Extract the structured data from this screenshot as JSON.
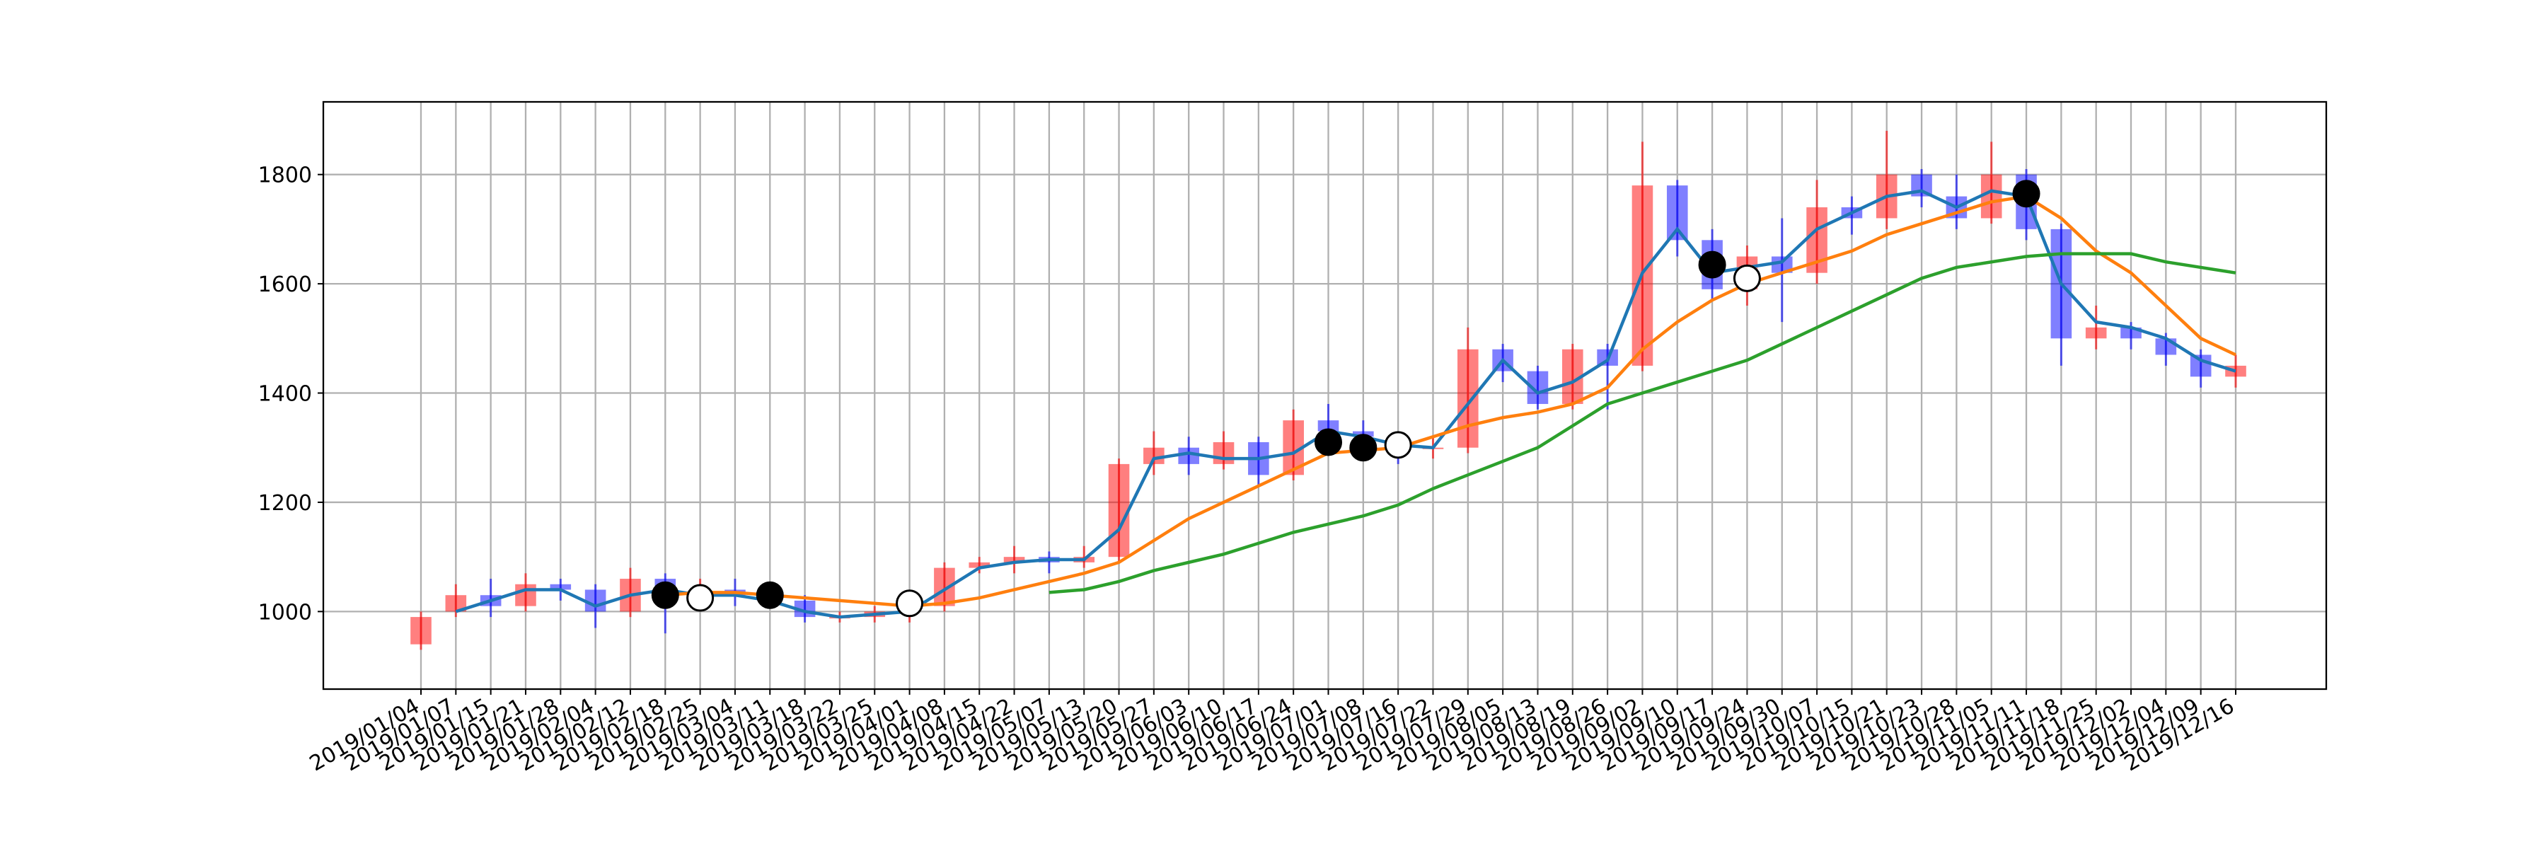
{
  "chart_data": {
    "type": "candlestick",
    "categories": [
      "2019/01/04",
      "2019/01/07",
      "2019/01/15",
      "2019/01/21",
      "2019/01/28",
      "2019/02/04",
      "2019/02/12",
      "2019/02/18",
      "2019/02/25",
      "2019/03/04",
      "2019/03/11",
      "2019/03/18",
      "2019/03/22",
      "2019/03/25",
      "2019/04/01",
      "2019/04/08",
      "2019/04/15",
      "2019/04/22",
      "2019/05/07",
      "2019/05/13",
      "2019/05/20",
      "2019/05/27",
      "2019/06/03",
      "2019/06/10",
      "2019/06/17",
      "2019/06/24",
      "2019/07/01",
      "2019/07/08",
      "2019/07/16",
      "2019/07/22",
      "2019/07/29",
      "2019/08/05",
      "2019/08/13",
      "2019/08/19",
      "2019/08/26",
      "2019/09/02",
      "2019/09/10",
      "2019/09/17",
      "2019/09/24",
      "2019/09/30",
      "2019/10/07",
      "2019/10/15",
      "2019/10/21",
      "2019/10/23",
      "2019/10/28",
      "2019/11/05",
      "2019/11/11",
      "2019/11/18",
      "2019/11/25",
      "2019/12/02",
      "2019/12/04",
      "2019/12/09",
      "2019/12/16"
    ],
    "open": [
      940,
      1000,
      1030,
      1010,
      1050,
      1040,
      1000,
      1060,
      1030,
      1040,
      1030,
      1020,
      990,
      990,
      1000,
      1010,
      1080,
      1090,
      1100,
      1090,
      1100,
      1270,
      1300,
      1270,
      1310,
      1250,
      1350,
      1330,
      1320,
      1300,
      1300,
      1480,
      1440,
      1380,
      1480,
      1450,
      1780,
      1680,
      1590,
      1650,
      1620,
      1740,
      1720,
      1800,
      1760,
      1720,
      1800,
      1700,
      1500,
      1520,
      1500,
      1470,
      1430
    ],
    "high": [
      1000,
      1050,
      1060,
      1070,
      1060,
      1050,
      1080,
      1070,
      1060,
      1060,
      1050,
      1030,
      1000,
      1010,
      1030,
      1090,
      1100,
      1120,
      1110,
      1120,
      1280,
      1330,
      1320,
      1330,
      1320,
      1370,
      1380,
      1350,
      1330,
      1320,
      1520,
      1490,
      1450,
      1490,
      1490,
      1860,
      1790,
      1700,
      1670,
      1720,
      1790,
      1760,
      1880,
      1810,
      1800,
      1860,
      1810,
      1710,
      1560,
      1530,
      1510,
      1480,
      1470
    ],
    "low": [
      930,
      990,
      990,
      1000,
      1020,
      970,
      990,
      960,
      1010,
      1010,
      1010,
      980,
      980,
      980,
      980,
      1000,
      1070,
      1070,
      1070,
      1080,
      1090,
      1250,
      1250,
      1260,
      1230,
      1240,
      1310,
      1300,
      1270,
      1280,
      1290,
      1420,
      1370,
      1370,
      1370,
      1440,
      1650,
      1570,
      1560,
      1530,
      1600,
      1690,
      1700,
      1740,
      1700,
      1710,
      1680,
      1450,
      1480,
      1480,
      1450,
      1410,
      1410
    ],
    "close": [
      990,
      1030,
      1010,
      1050,
      1040,
      1000,
      1060,
      1030,
      1040,
      1030,
      1020,
      990,
      990,
      1000,
      1010,
      1080,
      1090,
      1100,
      1090,
      1100,
      1270,
      1300,
      1270,
      1310,
      1250,
      1350,
      1330,
      1320,
      1300,
      1300,
      1480,
      1440,
      1380,
      1480,
      1450,
      1780,
      1680,
      1590,
      1650,
      1620,
      1740,
      1720,
      1800,
      1760,
      1720,
      1800,
      1700,
      1500,
      1520,
      1500,
      1470,
      1430,
      1450
    ],
    "up_color": "#ff0000",
    "down_color": "#0000ff",
    "ylim": [
      858,
      1933
    ],
    "yticks": [
      1000,
      1200,
      1400,
      1600,
      1800
    ],
    "grid": true,
    "lines": [
      {
        "color": "#1f77b4",
        "values": [
          null,
          1000,
          1020,
          1040,
          1040,
          1010,
          1030,
          1040,
          1030,
          1030,
          1020,
          1000,
          990,
          995,
          1000,
          1040,
          1080,
          1090,
          1095,
          1095,
          1150,
          1280,
          1290,
          1280,
          1280,
          1290,
          1330,
          1320,
          1305,
          1300,
          1380,
          1460,
          1400,
          1420,
          1460,
          1620,
          1700,
          1620,
          1630,
          1640,
          1700,
          1730,
          1760,
          1770,
          1740,
          1770,
          1760,
          1600,
          1530,
          1520,
          1500,
          1460,
          1440
        ]
      },
      {
        "color": "#ff7f0e",
        "values": [
          null,
          null,
          null,
          null,
          null,
          null,
          null,
          1030,
          1035,
          1035,
          1030,
          1025,
          1020,
          1015,
          1010,
          1015,
          1025,
          1040,
          1055,
          1070,
          1090,
          1130,
          1170,
          1200,
          1230,
          1260,
          1290,
          1295,
          1300,
          1320,
          1340,
          1355,
          1365,
          1380,
          1410,
          1480,
          1530,
          1570,
          1600,
          1620,
          1640,
          1660,
          1690,
          1710,
          1730,
          1750,
          1760,
          1720,
          1660,
          1620,
          1560,
          1500,
          1470
        ]
      },
      {
        "color": "#2ca02c",
        "values": [
          null,
          null,
          null,
          null,
          null,
          null,
          null,
          null,
          null,
          null,
          null,
          null,
          null,
          null,
          null,
          null,
          null,
          null,
          1035,
          1040,
          1055,
          1075,
          1090,
          1105,
          1125,
          1145,
          1160,
          1175,
          1195,
          1225,
          1250,
          1275,
          1300,
          1340,
          1380,
          1400,
          1420,
          1440,
          1460,
          1490,
          1520,
          1550,
          1580,
          1610,
          1630,
          1640,
          1650,
          1655,
          1655,
          1655,
          1640,
          1630,
          1620
        ]
      }
    ],
    "markers": [
      {
        "fill": "#000000",
        "x": [
          "2019/02/18",
          "2019/03/11",
          "2019/07/01",
          "2019/07/08",
          "2019/09/17",
          "2019/11/11"
        ],
        "values": [
          1030,
          1030,
          1310,
          1300,
          1635,
          1765
        ]
      },
      {
        "fill": "#ffffff",
        "x": [
          "2019/02/25",
          "2019/04/01",
          "2019/07/16",
          "2019/09/24"
        ],
        "values": [
          1025,
          1015,
          1305,
          1610
        ]
      }
    ]
  }
}
